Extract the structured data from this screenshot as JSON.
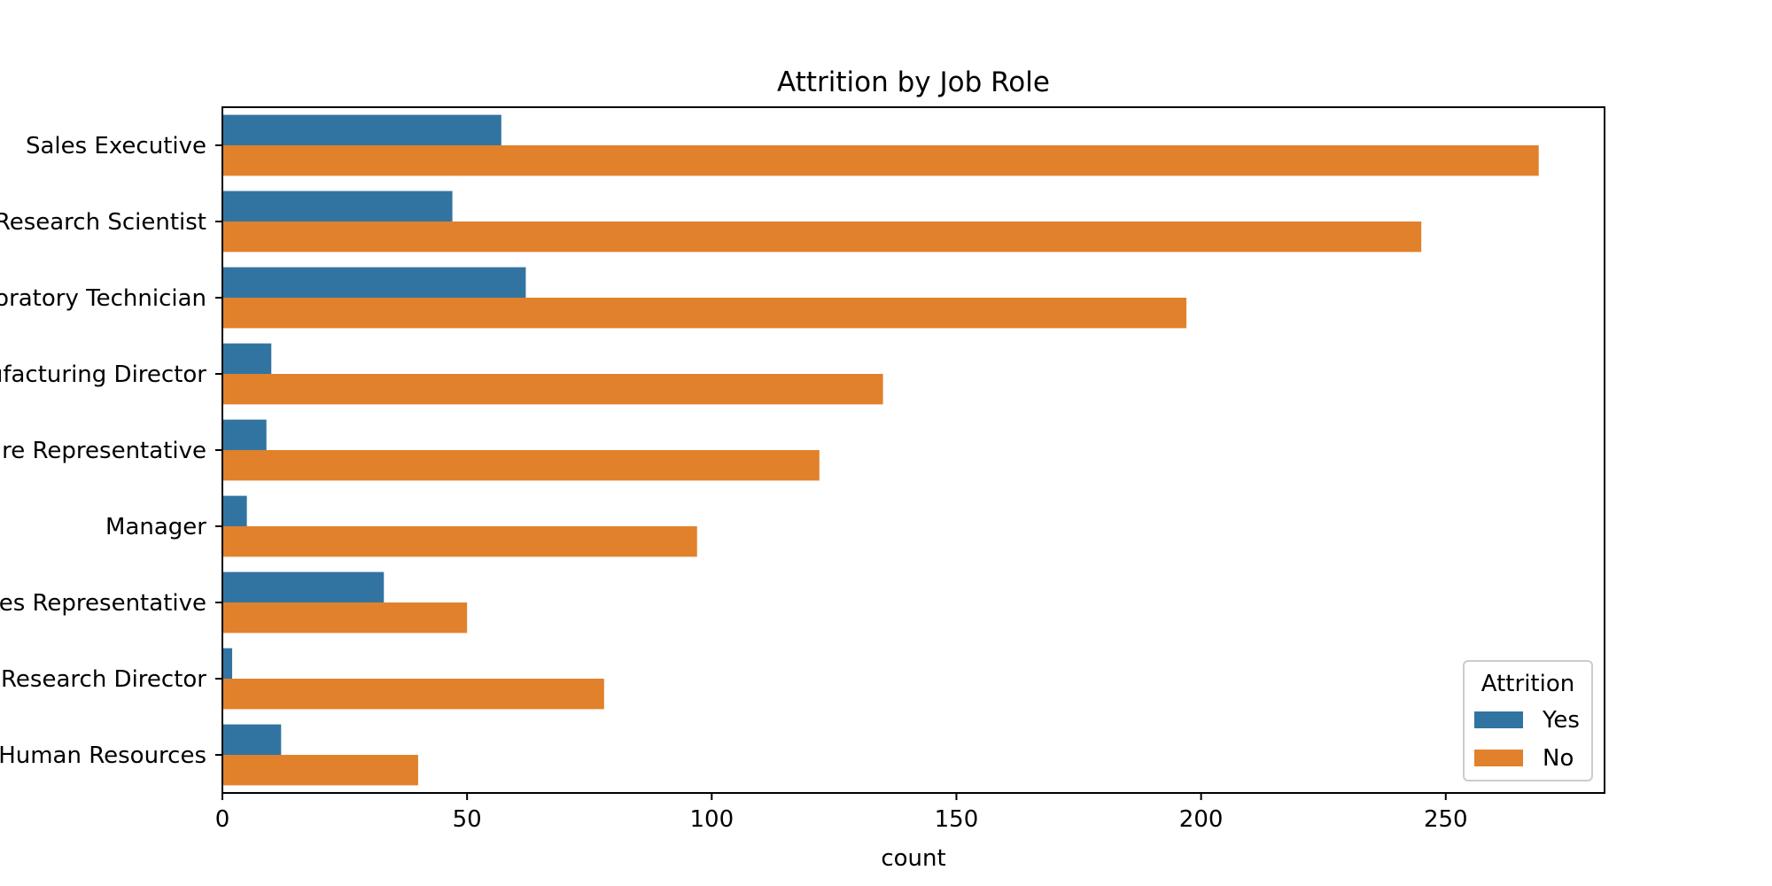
{
  "chart_data": {
    "type": "bar",
    "orientation": "horizontal",
    "title": "Attrition by Job Role",
    "xlabel": "count",
    "ylabel": "",
    "categories": [
      "Sales Executive",
      "Research Scientist",
      "Laboratory Technician",
      "Manufacturing Director",
      "Healthcare Representative",
      "Manager",
      "Sales Representative",
      "Research Director",
      "Human Resources"
    ],
    "series": [
      {
        "name": "Yes",
        "color": "#3274a1",
        "values": [
          57,
          47,
          62,
          10,
          9,
          5,
          33,
          2,
          12
        ]
      },
      {
        "name": "No",
        "color": "#e1812c",
        "values": [
          269,
          245,
          197,
          135,
          122,
          97,
          50,
          78,
          40
        ]
      }
    ],
    "xlim": [
      0,
      282.45
    ],
    "xticks": [
      0,
      50,
      100,
      150,
      200,
      250
    ],
    "grid": false,
    "legend": {
      "title": "Attrition",
      "placement": "lower-right"
    }
  }
}
